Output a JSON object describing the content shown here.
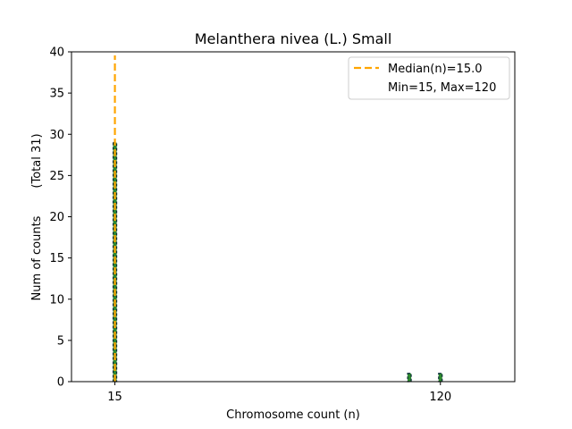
{
  "chart_data": {
    "type": "bar",
    "title": "Melanthera nivea (L.) Small",
    "xlabel": "Chromosome count (n)",
    "ylabel": "Num of counts",
    "ylabel_total": "(Total 31)",
    "xlim": [
      1,
      144
    ],
    "ylim": [
      0,
      40
    ],
    "xticks": [
      15,
      120
    ],
    "yticks": [
      0,
      5,
      10,
      15,
      20,
      25,
      30,
      35,
      40
    ],
    "bars": [
      {
        "x": 15,
        "count": 29
      },
      {
        "x": 110,
        "count": 1
      },
      {
        "x": 120,
        "count": 1
      }
    ],
    "median": 15.0,
    "min": 15,
    "max": 120,
    "legend": {
      "position": "top-right",
      "median_label": "Median(n)=15.0",
      "range_label": "Min=15, Max=120"
    },
    "colors": {
      "bar_fill": "#2e8b2e",
      "bar_edge": "#0b2d3a",
      "median_line": "#ffa500"
    }
  }
}
